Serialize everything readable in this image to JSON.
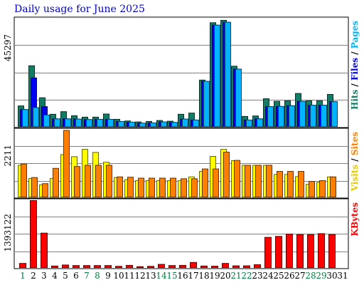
{
  "title": "Daily usage for June 2025",
  "colors": {
    "hits": "#127c64",
    "files": "#0000f0",
    "pages": "#00b4ff",
    "visits": "#ffff00",
    "sites": "#ff8000",
    "kbytes": "#ff0000",
    "weekend_label": "#008040",
    "label": "#000000"
  },
  "chart_data": [
    {
      "type": "bar",
      "panel": "hits-files-pages",
      "scale_label": "45297",
      "ylim": [
        0,
        45297
      ],
      "legend": [
        {
          "text": "Hits",
          "color": "#127c64"
        },
        {
          "text": " / ",
          "color": "#000000"
        },
        {
          "text": "Files",
          "color": "#0000f0"
        },
        {
          "text": " / ",
          "color": "#000000"
        },
        {
          "text": "Pages",
          "color": "#00b4ff"
        }
      ],
      "series": [
        {
          "name": "Hits",
          "values": [
            8900,
            25700,
            12300,
            5400,
            6500,
            4800,
            4200,
            4200,
            5500,
            3300,
            2600,
            2200,
            2400,
            2800,
            2500,
            5400,
            5900,
            19700,
            43700,
            44700,
            25500,
            4500,
            4700,
            11900,
            10800,
            11000,
            14100,
            11000,
            11000,
            13700,
            0
          ]
        },
        {
          "name": "Files",
          "values": [
            7400,
            20600,
            8600,
            3500,
            3500,
            3400,
            3200,
            3300,
            3300,
            2400,
            2100,
            1700,
            1800,
            2200,
            2000,
            3400,
            3000,
            19200,
            42700,
            43900,
            24300,
            3000,
            3500,
            8600,
            8700,
            9000,
            10800,
            9200,
            9200,
            10700,
            0
          ]
        },
        {
          "name": "Pages",
          "values": [
            7400,
            8200,
            5100,
            3500,
            3500,
            3400,
            3200,
            3300,
            3300,
            2400,
            2100,
            1700,
            1800,
            2200,
            2000,
            3400,
            3000,
            19200,
            42700,
            43900,
            24300,
            3000,
            3500,
            8600,
            8700,
            9000,
            10800,
            9200,
            9200,
            10700,
            0
          ]
        }
      ]
    },
    {
      "type": "bar",
      "panel": "visits-sites",
      "scale_label": "2211",
      "ylim": [
        0,
        2211
      ],
      "legend": [
        {
          "text": "Visits",
          "color": "#e6c800"
        },
        {
          "text": " / ",
          "color": "#000000"
        },
        {
          "text": "Sites",
          "color": "#ff8000"
        }
      ],
      "series": [
        {
          "name": "Visits",
          "values": [
            1060,
            630,
            420,
            630,
            1410,
            1340,
            1580,
            1480,
            1160,
            660,
            590,
            560,
            560,
            560,
            560,
            560,
            680,
            860,
            1350,
            1580,
            1210,
            1060,
            1060,
            1060,
            760,
            760,
            690,
            440,
            500,
            680,
            0
          ]
        },
        {
          "name": "Sites",
          "values": [
            1100,
            660,
            460,
            960,
            2200,
            1020,
            1060,
            1060,
            1060,
            680,
            670,
            640,
            640,
            640,
            640,
            620,
            620,
            940,
            940,
            1490,
            1220,
            1060,
            1060,
            1060,
            860,
            860,
            860,
            530,
            560,
            680,
            0
          ]
        }
      ]
    },
    {
      "type": "bar",
      "panel": "kbytes",
      "scale_label": "1393122",
      "ylim": [
        0,
        1393122
      ],
      "legend": [
        {
          "text": "KBytes",
          "color": "#ff0000"
        }
      ],
      "series": [
        {
          "name": "KBytes",
          "values": [
            100000,
            1393122,
            723000,
            46000,
            67000,
            56000,
            56000,
            56000,
            56000,
            40000,
            60000,
            33000,
            40000,
            80000,
            56000,
            60000,
            120000,
            46000,
            43000,
            100000,
            50000,
            50000,
            73000,
            636000,
            656000,
            703000,
            693000,
            693000,
            713000,
            693000,
            0
          ]
        }
      ]
    }
  ],
  "x_axis": {
    "days": [
      "1",
      "2",
      "3",
      "4",
      "5",
      "6",
      "7",
      "8",
      "9",
      "10",
      "11",
      "12",
      "13",
      "14",
      "15",
      "16",
      "17",
      "18",
      "19",
      "20",
      "21",
      "22",
      "23",
      "24",
      "25",
      "26",
      "27",
      "28",
      "29",
      "30",
      "31"
    ],
    "weekend_days": [
      "1",
      "7",
      "8",
      "14",
      "15",
      "21",
      "22",
      "28",
      "29"
    ]
  }
}
